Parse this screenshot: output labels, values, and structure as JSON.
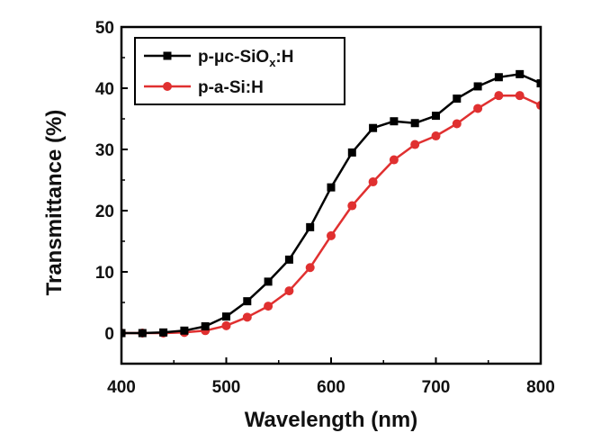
{
  "chart_data": {
    "type": "line",
    "xlabel": "Wavelength (nm)",
    "ylabel": "Transmittance (%)",
    "xlim": [
      400,
      800
    ],
    "ylim": [
      -5,
      50
    ],
    "xticks": [
      400,
      500,
      600,
      700,
      800
    ],
    "yticks": [
      0,
      10,
      20,
      30,
      40,
      50
    ],
    "grid": false,
    "legend_position": "top-left",
    "series": [
      {
        "name": "p-μc-SiOx:H",
        "legend_main": "p-μc-SiO",
        "legend_sub": "x",
        "legend_tail": ":H",
        "color": "#000000",
        "marker": "square",
        "x": [
          400,
          420,
          440,
          460,
          480,
          500,
          520,
          540,
          560,
          580,
          600,
          620,
          640,
          660,
          680,
          700,
          720,
          740,
          760,
          780,
          800
        ],
        "values": [
          0.0,
          0.0,
          0.1,
          0.4,
          1.1,
          2.7,
          5.2,
          8.4,
          12.0,
          17.3,
          23.8,
          29.5,
          33.5,
          34.6,
          34.3,
          35.5,
          38.3,
          40.3,
          41.8,
          42.3,
          40.8
        ]
      },
      {
        "name": "p-a-Si:H",
        "legend_main": "p-a-Si:H",
        "legend_sub": "",
        "legend_tail": "",
        "color": "#e03030",
        "marker": "circle",
        "x": [
          400,
          420,
          440,
          460,
          480,
          500,
          520,
          540,
          560,
          580,
          600,
          620,
          640,
          660,
          680,
          700,
          720,
          740,
          760,
          780,
          800
        ],
        "values": [
          0.0,
          0.0,
          0.0,
          0.1,
          0.4,
          1.2,
          2.6,
          4.4,
          6.9,
          10.7,
          15.9,
          20.8,
          24.7,
          28.3,
          30.8,
          32.2,
          34.2,
          36.7,
          38.8,
          38.8,
          37.2
        ]
      }
    ]
  }
}
